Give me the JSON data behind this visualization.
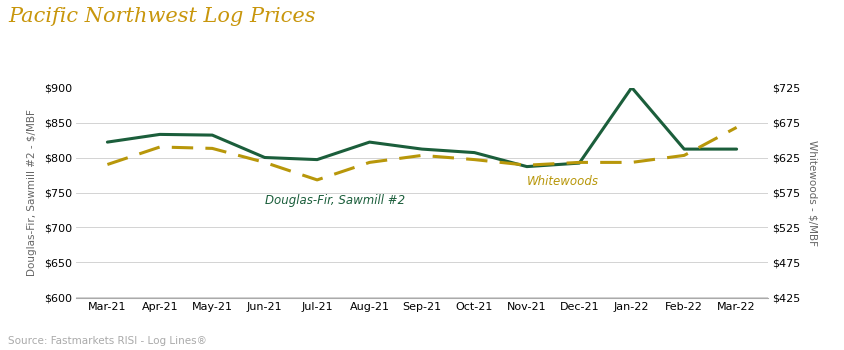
{
  "title": "Pacific Northwest Log Prices",
  "title_color": "#C8960C",
  "title_fontsize": 15,
  "source_text": "Source: Fastmarkets RISI - Log Lines®",
  "x_labels": [
    "Mar-21",
    "Apr-21",
    "May-21",
    "Jun-21",
    "Jul-21",
    "Aug-21",
    "Sep-21",
    "Oct-21",
    "Nov-21",
    "Dec-21",
    "Jan-22",
    "Feb-22",
    "Mar-22"
  ],
  "df_values": [
    822,
    833,
    832,
    800,
    797,
    822,
    812,
    807,
    787,
    792,
    900,
    812,
    812
  ],
  "ww_values": [
    615,
    640,
    638,
    618,
    593,
    618,
    628,
    622,
    614,
    618,
    618,
    628,
    668
  ],
  "df_color": "#1B5E3B",
  "ww_color": "#B8970A",
  "left_ylabel": "Douglas-Fir, Sawmill #2 - $/MBF",
  "right_ylabel": "Whitewoods - $/MBF",
  "left_ylim": [
    600,
    900
  ],
  "right_ylim": [
    425,
    725
  ],
  "left_yticks": [
    600,
    650,
    700,
    750,
    800,
    850,
    900
  ],
  "right_yticks": [
    425,
    475,
    525,
    575,
    625,
    675,
    725
  ],
  "df_label": "Douglas-Fir, Sawmill #2",
  "ww_label": "Whitewoods",
  "background_color": "#FFFFFF",
  "grid_color": "#CCCCCC",
  "df_label_xi": 3,
  "df_label_yi": 748,
  "ww_label_xi": 8,
  "ww_label_yi": 775
}
